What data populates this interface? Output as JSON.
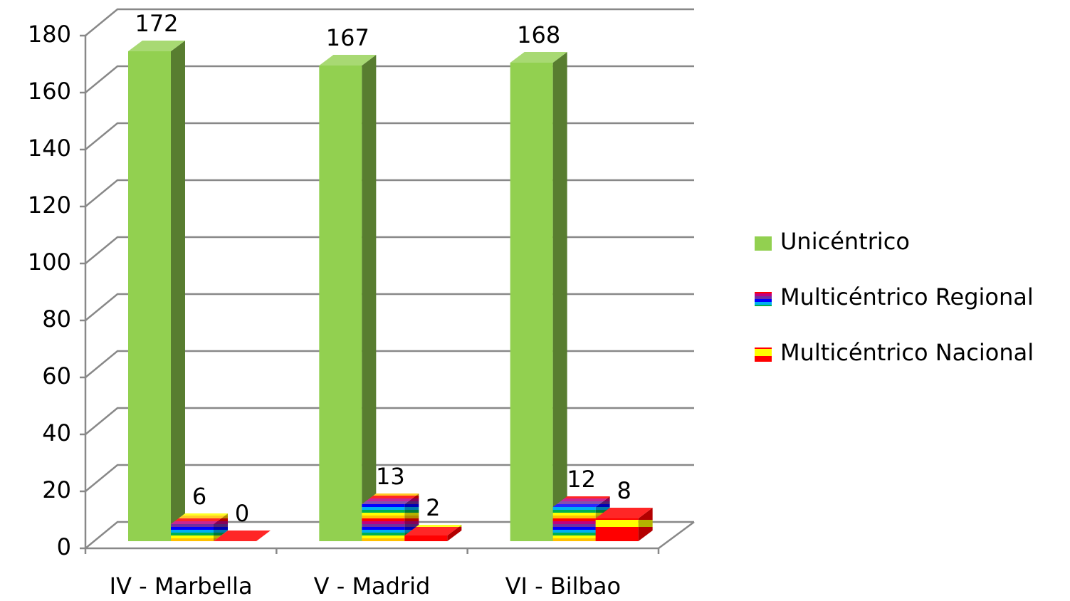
{
  "chart_data": {
    "type": "bar3d",
    "categories": [
      "IV - Marbella",
      "V - Madrid",
      "VI - Bilbao"
    ],
    "series": [
      {
        "name": "Unicéntrico",
        "colors": [
          "#92d050"
        ],
        "values": [
          172,
          167,
          168
        ]
      },
      {
        "name": "Multicéntrico Regional",
        "colors": [
          "#7030a0",
          "#0000ff",
          "#00b0f0",
          "#00b050",
          "#ffff00",
          "#ffc000",
          "#ff0000",
          "#c00080"
        ],
        "values": [
          6,
          13,
          12
        ]
      },
      {
        "name": "Multicéntrico Nacional",
        "colors": [
          "#ff0000",
          "#ffff00",
          "#ff0000"
        ],
        "values": [
          0,
          2,
          8
        ]
      }
    ],
    "ylim": [
      0,
      180
    ],
    "yticks": [
      0,
      20,
      40,
      60,
      80,
      100,
      120,
      140,
      160,
      180
    ],
    "grid": true,
    "legend": "right"
  }
}
